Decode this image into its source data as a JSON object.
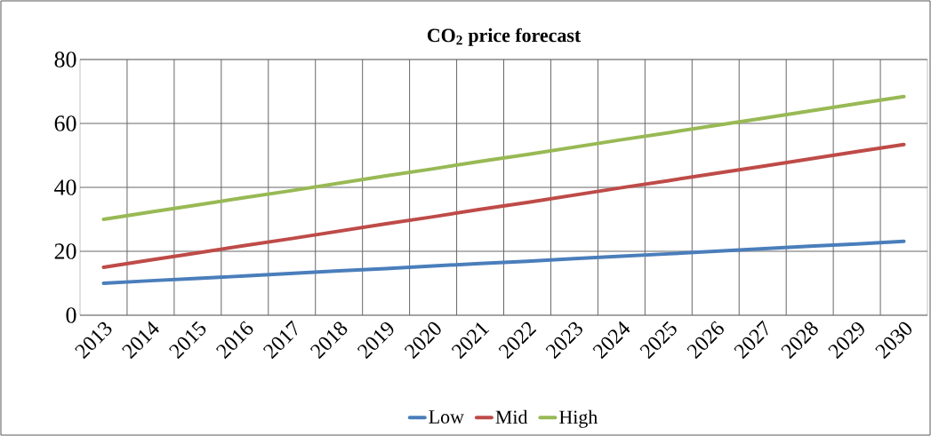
{
  "chart_data": {
    "type": "line",
    "title": "CO$_{2}$ price forecast",
    "categories": [
      "2013",
      "2014",
      "2015",
      "2016",
      "2017",
      "2018",
      "2019",
      "2020",
      "2021",
      "2022",
      "2023",
      "2024",
      "2025",
      "2026",
      "2027",
      "2028",
      "2029",
      "2030"
    ],
    "series": [
      {
        "name": "Low",
        "color": "#4a7ebb",
        "values": [
          10,
          10.8,
          11.5,
          12.3,
          13.1,
          13.9,
          14.6,
          15.4,
          16.2,
          16.9,
          17.7,
          18.5,
          19.2,
          20.0,
          20.8,
          21.6,
          22.3,
          23.1
        ]
      },
      {
        "name": "Mid",
        "color": "#be4b48",
        "values": [
          15,
          17.3,
          19.5,
          21.8,
          24.0,
          26.3,
          28.6,
          30.8,
          33.1,
          35.3,
          37.6,
          39.9,
          42.1,
          44.4,
          46.6,
          48.9,
          51.2,
          53.4
        ]
      },
      {
        "name": "High",
        "color": "#98b954",
        "values": [
          30,
          32.3,
          34.5,
          36.8,
          39.0,
          41.3,
          43.6,
          45.8,
          48.1,
          50.3,
          52.6,
          54.9,
          57.1,
          59.4,
          61.6,
          63.9,
          66.2,
          68.4
        ]
      }
    ],
    "ylim": [
      0,
      80
    ],
    "yticks": [
      0,
      20,
      40,
      60,
      80
    ],
    "grid": true,
    "legend": "bottom"
  }
}
